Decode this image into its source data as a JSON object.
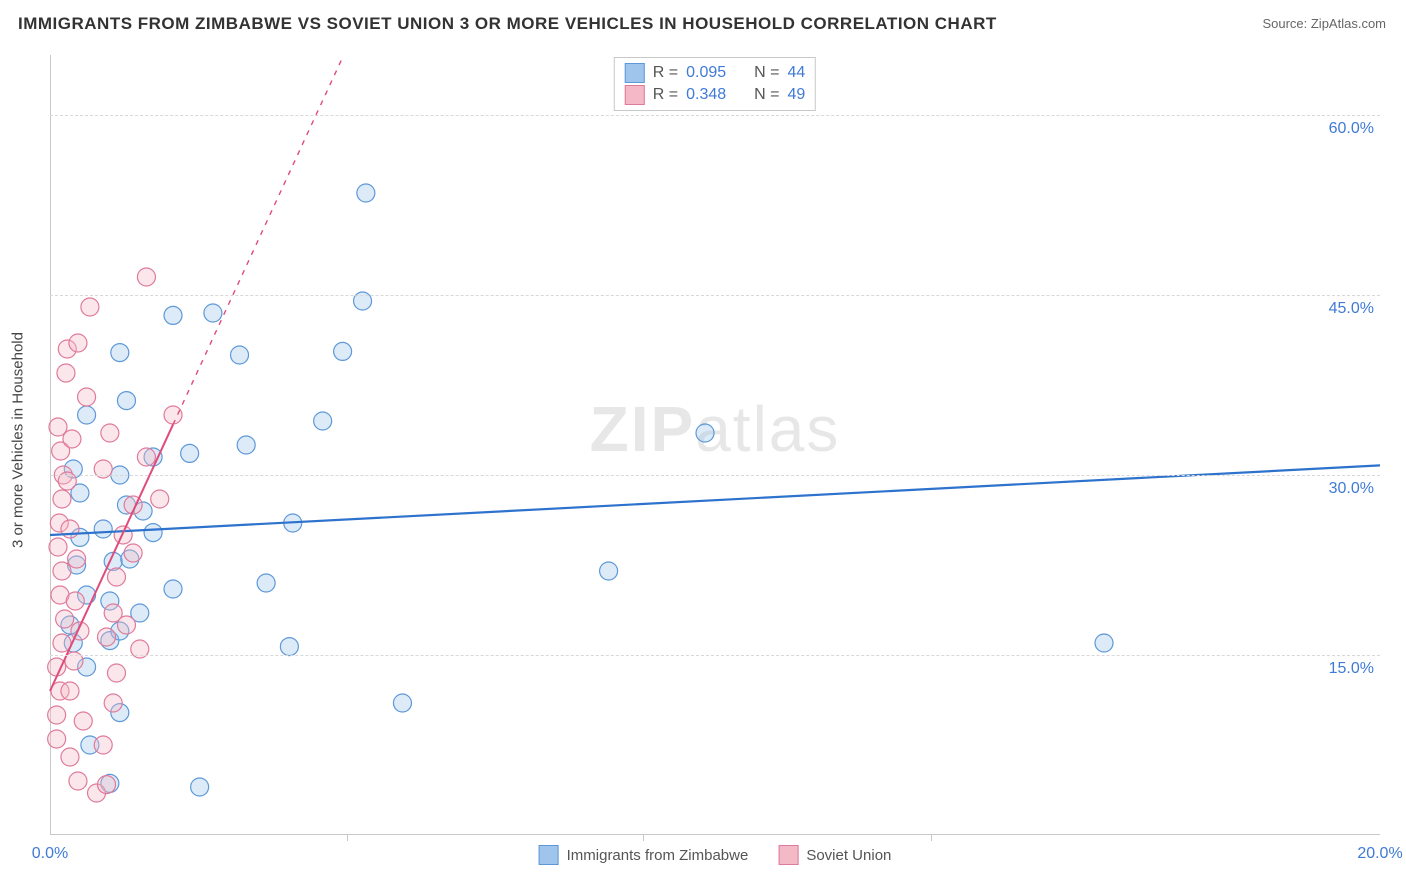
{
  "title": "IMMIGRANTS FROM ZIMBABWE VS SOVIET UNION 3 OR MORE VEHICLES IN HOUSEHOLD CORRELATION CHART",
  "source": "Source: ZipAtlas.com",
  "watermark_bold": "ZIP",
  "watermark_light": "atlas",
  "y_axis_title": "3 or more Vehicles in Household",
  "chart": {
    "type": "scatter",
    "background_color": "#ffffff",
    "grid_color": "#d8d8d8",
    "xlim": [
      0.0,
      20.0
    ],
    "ylim": [
      0.0,
      65.0
    ],
    "x_ticks": [
      0.0,
      20.0
    ],
    "x_tick_labels": [
      "0.0%",
      "20.0%"
    ],
    "x_minor_ticks": [
      4.46,
      8.92,
      13.25
    ],
    "y_ticks": [
      15.0,
      30.0,
      45.0,
      60.0
    ],
    "y_tick_labels": [
      "15.0%",
      "30.0%",
      "45.0%",
      "60.0%"
    ],
    "marker_radius": 9,
    "series": [
      {
        "name": "Immigrants from Zimbabwe",
        "color_fill": "#9fc5ec",
        "color_stroke": "#5d98d8",
        "trend": {
          "intercept": 25.0,
          "slope": 0.29,
          "dash_from_x": null,
          "color": "#2d72cd",
          "width": 2.2
        },
        "points": [
          [
            0.45,
            24.8
          ],
          [
            0.4,
            22.5
          ],
          [
            0.55,
            20.0
          ],
          [
            0.3,
            17.5
          ],
          [
            0.35,
            16.0
          ],
          [
            0.35,
            30.5
          ],
          [
            0.8,
            25.5
          ],
          [
            0.95,
            22.8
          ],
          [
            1.15,
            27.5
          ],
          [
            1.2,
            23.0
          ],
          [
            0.9,
            16.2
          ],
          [
            1.05,
            30.0
          ],
          [
            1.15,
            36.2
          ],
          [
            1.05,
            40.2
          ],
          [
            1.4,
            27.0
          ],
          [
            1.55,
            25.2
          ],
          [
            1.55,
            31.5
          ],
          [
            1.85,
            43.3
          ],
          [
            2.1,
            31.8
          ],
          [
            2.45,
            43.5
          ],
          [
            2.85,
            40.0
          ],
          [
            2.95,
            32.5
          ],
          [
            3.65,
            26.0
          ],
          [
            3.25,
            21.0
          ],
          [
            1.85,
            20.5
          ],
          [
            1.35,
            18.5
          ],
          [
            2.25,
            4.0
          ],
          [
            4.75,
            53.5
          ],
          [
            4.7,
            44.5
          ],
          [
            4.1,
            34.5
          ],
          [
            4.4,
            40.3
          ],
          [
            3.6,
            15.7
          ],
          [
            5.3,
            11.0
          ],
          [
            8.4,
            22.0
          ],
          [
            9.85,
            33.5
          ],
          [
            15.85,
            16.0
          ],
          [
            1.05,
            10.2
          ],
          [
            0.6,
            7.5
          ],
          [
            0.9,
            4.3
          ],
          [
            1.05,
            17.0
          ],
          [
            0.9,
            19.5
          ],
          [
            0.45,
            28.5
          ],
          [
            0.55,
            35.0
          ],
          [
            0.55,
            14.0
          ]
        ]
      },
      {
        "name": "Soviet Union",
        "color_fill": "#f3b9c7",
        "color_stroke": "#e07a9a",
        "trend": {
          "intercept": 12.0,
          "slope": 12.0,
          "dash_from_x": 1.85,
          "color": "#e04b7a",
          "width": 2.0
        },
        "points": [
          [
            0.1,
            8.0
          ],
          [
            0.1,
            10.0
          ],
          [
            0.15,
            12.0
          ],
          [
            0.1,
            14.0
          ],
          [
            0.18,
            16.0
          ],
          [
            0.22,
            18.0
          ],
          [
            0.15,
            20.0
          ],
          [
            0.18,
            22.0
          ],
          [
            0.12,
            24.0
          ],
          [
            0.14,
            26.0
          ],
          [
            0.18,
            28.0
          ],
          [
            0.2,
            30.0
          ],
          [
            0.16,
            32.0
          ],
          [
            0.12,
            34.0
          ],
          [
            0.24,
            38.5
          ],
          [
            0.26,
            40.5
          ],
          [
            0.33,
            33.0
          ],
          [
            0.26,
            29.5
          ],
          [
            0.3,
            25.5
          ],
          [
            0.4,
            23.0
          ],
          [
            0.38,
            19.5
          ],
          [
            0.45,
            17.0
          ],
          [
            0.36,
            14.5
          ],
          [
            0.3,
            12.0
          ],
          [
            0.5,
            9.5
          ],
          [
            0.3,
            6.5
          ],
          [
            0.42,
            4.5
          ],
          [
            0.7,
            3.5
          ],
          [
            0.85,
            4.2
          ],
          [
            0.8,
            7.5
          ],
          [
            0.95,
            11.0
          ],
          [
            1.0,
            13.5
          ],
          [
            0.85,
            16.5
          ],
          [
            0.95,
            18.5
          ],
          [
            1.0,
            21.5
          ],
          [
            1.1,
            25.0
          ],
          [
            0.8,
            30.5
          ],
          [
            0.9,
            33.5
          ],
          [
            1.25,
            27.5
          ],
          [
            1.25,
            23.5
          ],
          [
            1.15,
            17.5
          ],
          [
            1.35,
            15.5
          ],
          [
            1.45,
            31.5
          ],
          [
            1.65,
            28.0
          ],
          [
            1.85,
            35.0
          ],
          [
            1.45,
            46.5
          ],
          [
            0.6,
            44.0
          ],
          [
            0.55,
            36.5
          ],
          [
            0.42,
            41.0
          ]
        ]
      }
    ],
    "legend_top": [
      {
        "swatch_fill": "#9fc5ec",
        "swatch_stroke": "#5d98d8",
        "r_label": "R =",
        "r_value": "0.095",
        "n_label": "N =",
        "n_value": "44"
      },
      {
        "swatch_fill": "#f3b9c7",
        "swatch_stroke": "#e07a9a",
        "r_label": "R =",
        "r_value": "0.348",
        "n_label": "N =",
        "n_value": "49"
      }
    ],
    "legend_bottom": [
      {
        "swatch_fill": "#9fc5ec",
        "swatch_stroke": "#5d98d8",
        "label": "Immigrants from Zimbabwe"
      },
      {
        "swatch_fill": "#f3b9c7",
        "swatch_stroke": "#e07a9a",
        "label": "Soviet Union"
      }
    ]
  }
}
